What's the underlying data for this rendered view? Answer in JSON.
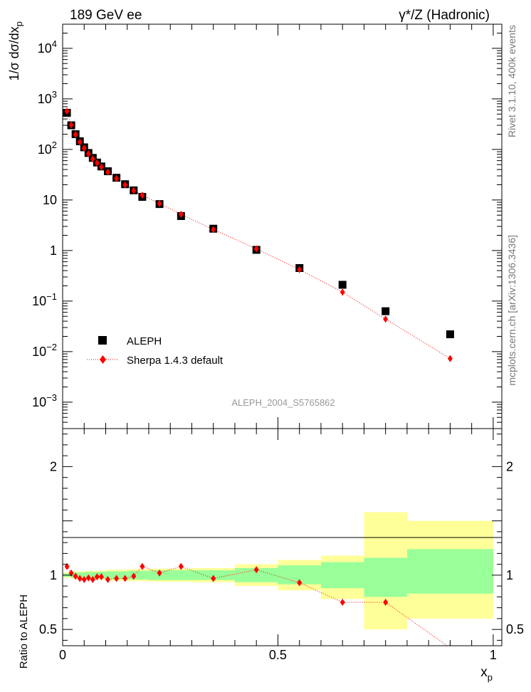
{
  "header": {
    "left": "189 GeV ee",
    "right": "γ*/Z (Hadronic)"
  },
  "side_labels": {
    "rivet": "Rivet 3.1.10,  400k events",
    "mcplots": "mcplots.cern.ch [arXiv:1306.3436]"
  },
  "analysis_id": "ALEPH_2004_S5765862",
  "colors": {
    "data": "#000000",
    "mc": "#ff0000",
    "band_inner": "#99ff99",
    "band_outer": "#ffff99"
  },
  "chart_data": [
    {
      "type": "scatter",
      "yscale": "log",
      "ylabel": "1/σ dσ/dx_p",
      "xlim": [
        0,
        1.02
      ],
      "ylim": [
        0.0003,
        30000
      ],
      "ytick_labels": [
        "10^-3",
        "10^-2",
        "10^-1",
        "1",
        "10",
        "10^2",
        "10^3",
        "10^4"
      ],
      "legend": {
        "position": "bottom-left",
        "entries": [
          "ALEPH",
          "Sherpa 1.4.3 default"
        ]
      },
      "series": [
        {
          "name": "ALEPH",
          "marker": "square",
          "x": [
            0.01,
            0.02,
            0.03,
            0.04,
            0.05,
            0.06,
            0.07,
            0.08,
            0.09,
            0.105,
            0.125,
            0.145,
            0.165,
            0.185,
            0.225,
            0.275,
            0.35,
            0.45,
            0.55,
            0.65,
            0.75,
            0.9
          ],
          "y": [
            530,
            300,
            200,
            145,
            110,
            85,
            68,
            55,
            46,
            37,
            27.5,
            20.5,
            15.5,
            11.5,
            8.3,
            4.8,
            2.7,
            1.03,
            0.45,
            0.21,
            0.063,
            0.022
          ]
        },
        {
          "name": "Sherpa 1.4.3 default",
          "marker": "diamond",
          "x": [
            0.01,
            0.02,
            0.03,
            0.04,
            0.05,
            0.06,
            0.07,
            0.08,
            0.09,
            0.105,
            0.125,
            0.145,
            0.165,
            0.185,
            0.225,
            0.275,
            0.35,
            0.45,
            0.55,
            0.65,
            0.75,
            0.9
          ],
          "y": [
            570,
            305,
            197,
            140,
            106,
            82,
            65,
            54,
            45,
            35.5,
            26.6,
            19.9,
            15.3,
            12.4,
            8.5,
            5.2,
            2.6,
            1.08,
            0.42,
            0.15,
            0.044,
            0.0073
          ]
        }
      ]
    },
    {
      "type": "line",
      "ylabel": "Ratio to ALEPH",
      "xlabel": "x_p",
      "xlim": [
        0,
        1.02
      ],
      "ylim": [
        0.35,
        2.35
      ],
      "xtick_labels": [
        "0",
        "0.5",
        "1"
      ],
      "ytick_labels": [
        "0.5",
        "1",
        "2"
      ],
      "bands": {
        "edges": [
          0.0,
          0.02,
          0.05,
          0.1,
          0.15,
          0.2,
          0.25,
          0.3,
          0.4,
          0.5,
          0.6,
          0.7,
          0.8,
          1.0
        ],
        "inner_lo": [
          0.985,
          0.975,
          0.97,
          0.965,
          0.96,
          0.955,
          0.955,
          0.955,
          0.935,
          0.915,
          0.88,
          0.8,
          0.83
        ],
        "inner_hi": [
          1.015,
          1.025,
          1.03,
          1.035,
          1.04,
          1.045,
          1.045,
          1.045,
          1.065,
          1.09,
          1.12,
          1.16,
          1.24
        ],
        "outer_lo": [
          0.975,
          0.965,
          0.96,
          0.95,
          0.945,
          0.94,
          0.94,
          0.935,
          0.9,
          0.86,
          0.78,
          0.5,
          0.6
        ],
        "outer_hi": [
          1.025,
          1.035,
          1.04,
          1.05,
          1.055,
          1.06,
          1.06,
          1.065,
          1.1,
          1.14,
          1.18,
          1.58,
          1.5
        ]
      },
      "series": [
        {
          "name": "Sherpa 1.4.3 default",
          "x": [
            0.01,
            0.02,
            0.03,
            0.04,
            0.05,
            0.06,
            0.07,
            0.08,
            0.09,
            0.105,
            0.125,
            0.145,
            0.165,
            0.185,
            0.225,
            0.275,
            0.35,
            0.45,
            0.55,
            0.65,
            0.75,
            0.9
          ],
          "y": [
            1.08,
            1.02,
            0.99,
            0.97,
            0.96,
            0.975,
            0.96,
            0.985,
            0.985,
            0.96,
            0.97,
            0.97,
            0.99,
            1.08,
            1.02,
            1.08,
            0.97,
            1.05,
            0.93,
            0.75,
            0.75,
            0.33
          ]
        }
      ]
    }
  ]
}
